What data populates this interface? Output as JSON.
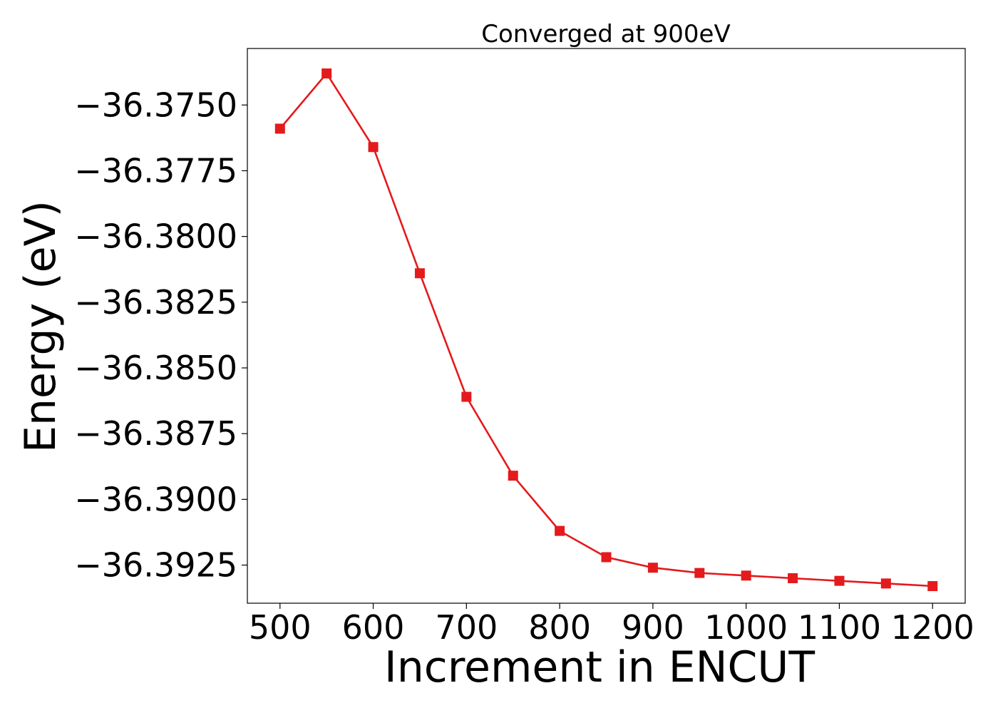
{
  "chart_data": {
    "type": "line",
    "title": "Converged at 900eV",
    "xlabel": "Increment in ENCUT",
    "ylabel": "Energy (eV)",
    "x": [
      500,
      550,
      600,
      650,
      700,
      750,
      800,
      850,
      900,
      950,
      1000,
      1050,
      1100,
      1150,
      1200
    ],
    "series": [
      {
        "values": [
          -36.3759,
          -36.3738,
          -36.3766,
          -36.3814,
          -36.3861,
          -36.3891,
          -36.3912,
          -36.3922,
          -36.3926,
          -36.3928,
          -36.3929,
          -36.393,
          -36.3931,
          -36.3932,
          -36.3933
        ],
        "color": "#e41a1c",
        "marker": "square"
      }
    ],
    "xlim": [
      465,
      1235
    ],
    "ylim": [
      -36.39395,
      -36.37285
    ],
    "xticks": [
      500,
      600,
      700,
      800,
      900,
      1000,
      1100,
      1200
    ],
    "xtick_labels": [
      "500",
      "600",
      "700",
      "800",
      "900",
      "1000",
      "1100",
      "1200"
    ],
    "yticks": [
      -36.375,
      -36.3775,
      -36.38,
      -36.3825,
      -36.385,
      -36.3875,
      -36.39,
      -36.3925
    ],
    "ytick_labels": [
      "−36.3750",
      "−36.3775",
      "−36.3800",
      "−36.3825",
      "−36.3850",
      "−36.3875",
      "−36.3900",
      "−36.3925"
    ],
    "grid": false,
    "legend": false
  }
}
